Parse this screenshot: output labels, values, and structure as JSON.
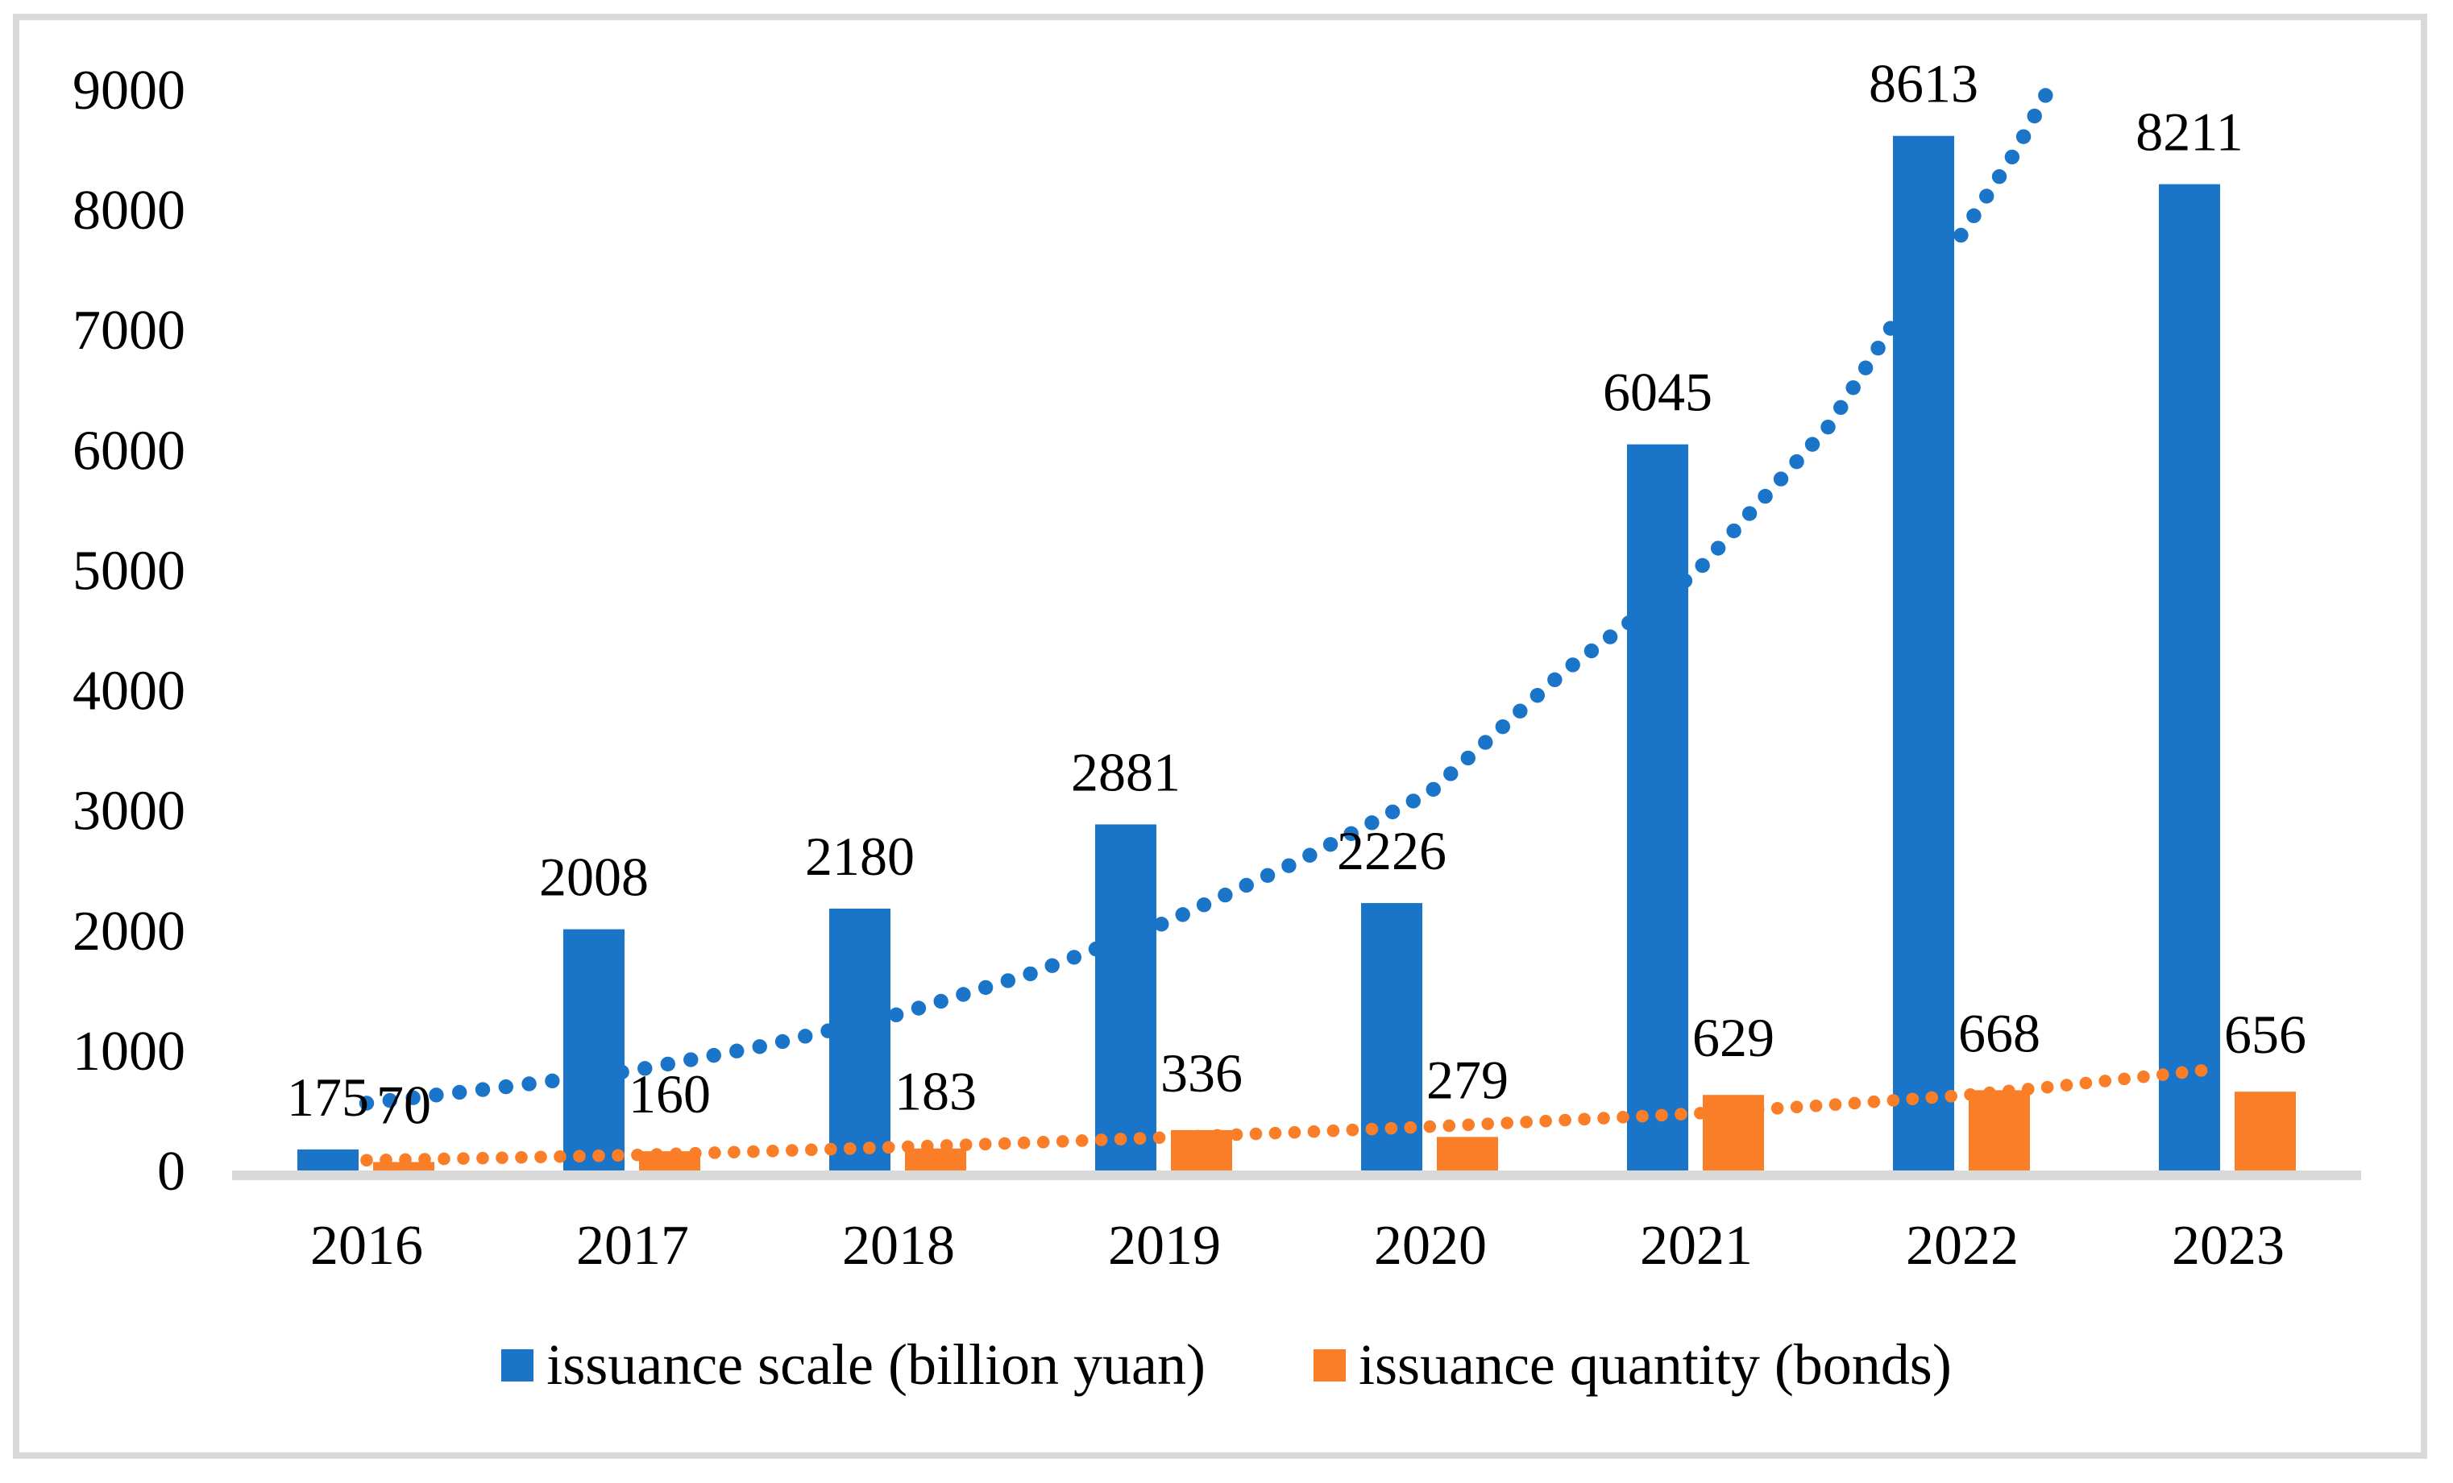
{
  "chart_data": {
    "type": "bar",
    "title": "",
    "categories": [
      "2016",
      "2017",
      "2018",
      "2019",
      "2020",
      "2021",
      "2022",
      "2023"
    ],
    "series": [
      {
        "name": "issuance scale (billion yuan)",
        "color": "#1A75C8",
        "values": [
          175,
          2008,
          2180,
          2881,
          2226,
          6045,
          8613,
          8211
        ],
        "data_labels": [
          "175",
          "2008",
          "2180",
          "2881",
          "2226",
          "6045",
          "8613",
          "8211"
        ]
      },
      {
        "name": "issuance quantity (bonds)",
        "color": "#FA7E27",
        "values": [
          70,
          160,
          183,
          336,
          279,
          629,
          668,
          656
        ],
        "data_labels": [
          "70",
          "160",
          "183",
          "336",
          "279",
          "629",
          "668",
          "656"
        ]
      }
    ],
    "y_axis": {
      "min": 0,
      "max": 9000,
      "step": 1000,
      "tick_labels": [
        "0",
        "1000",
        "2000",
        "3000",
        "4000",
        "5000",
        "6000",
        "7000",
        "8000",
        "9000"
      ]
    },
    "x_axis": {
      "tick_labels": [
        "2016",
        "2017",
        "2018",
        "2019",
        "2020",
        "2021",
        "2022",
        "2023"
      ]
    },
    "grid": false,
    "legend_position": "bottom",
    "trendlines": [
      {
        "series": "issuance scale (billion yuan)",
        "style": "dotted",
        "color": "#1A75C8",
        "samples_category_value": [
          [
            0,
            560
          ],
          [
            0.5,
            690
          ],
          [
            1,
            830
          ],
          [
            1.5,
            1040
          ],
          [
            2,
            1300
          ],
          [
            2.5,
            1640
          ],
          [
            3,
            2060
          ],
          [
            3.5,
            2570
          ],
          [
            4,
            3150
          ],
          [
            4.5,
            4150
          ],
          [
            5,
            4980
          ],
          [
            5.5,
            6200
          ],
          [
            5.75,
            7080
          ],
          [
            6,
            7800
          ],
          [
            6.2,
            8480
          ],
          [
            6.33,
            9020
          ]
        ]
      },
      {
        "series": "issuance quantity (bonds)",
        "style": "dotted",
        "color": "#FA7E27",
        "samples_category_value": [
          [
            0,
            85
          ],
          [
            0.5,
            105
          ],
          [
            1,
            128
          ],
          [
            1.5,
            160
          ],
          [
            2,
            195
          ],
          [
            2.5,
            232
          ],
          [
            3,
            275
          ],
          [
            3.5,
            318
          ],
          [
            4,
            365
          ],
          [
            4.5,
            418
          ],
          [
            5,
            475
          ],
          [
            5.5,
            545
          ],
          [
            6,
            625
          ],
          [
            6.3,
            688
          ],
          [
            6.6,
            760
          ],
          [
            6.95,
            845
          ]
        ]
      }
    ],
    "axis_line_color": "#D9D9D9",
    "text_color": "#000000"
  },
  "legend": {
    "items": [
      {
        "label": "issuance scale (billion yuan)",
        "color": "#1A75C8"
      },
      {
        "label": "issuance quantity (bonds)",
        "color": "#FA7E27"
      }
    ]
  }
}
